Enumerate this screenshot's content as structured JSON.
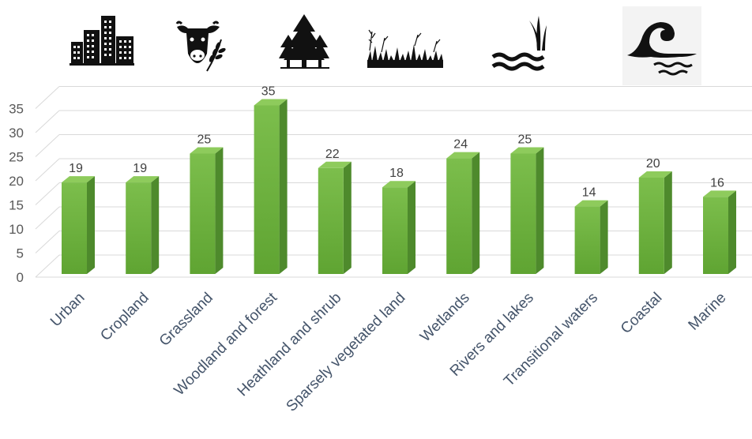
{
  "chart_data": {
    "type": "bar",
    "categories": [
      "Urban",
      "Cropland",
      "Grassland",
      "Woodland and forest",
      "Heathland and shrub",
      "Sparsely vegetated land",
      "Wetlands",
      "Rivers and lakes",
      "Transitional waters",
      "Coastal",
      "Marine"
    ],
    "values": [
      19,
      19,
      25,
      35,
      22,
      18,
      24,
      25,
      14,
      20,
      16
    ],
    "data_labels": [
      "19",
      "19",
      "25",
      "35",
      "22",
      "18",
      "24",
      "25",
      "14",
      "20",
      "16"
    ],
    "yticks": [
      "0",
      "5",
      "10",
      "15",
      "20",
      "25",
      "30",
      "35"
    ],
    "ylim": [
      0,
      35
    ],
    "grid": true,
    "style": "3d-column",
    "bar_color": "#70ad47",
    "title": "",
    "xlabel": "",
    "ylabel": ""
  },
  "icons": [
    "city-buildings-icon",
    "cow-and-wheat-icon",
    "pine-trees-icon",
    "grass-shrub-icon",
    "water-reeds-icon",
    "ocean-wave-icon"
  ],
  "colors": {
    "bar_front": "#6fb23f",
    "bar_side": "#4e8a2c",
    "bar_top": "#8ecb5c",
    "grid": "#d9d9d9"
  }
}
